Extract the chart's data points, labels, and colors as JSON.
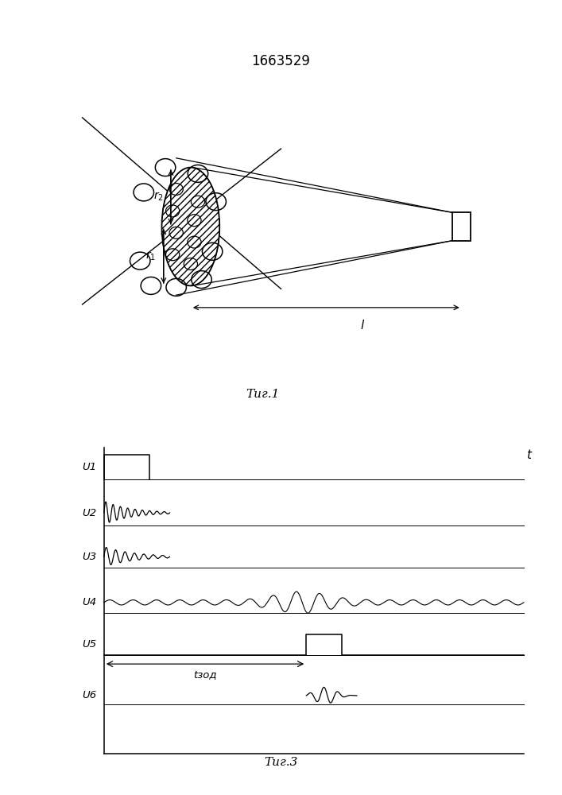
{
  "title": "1663529",
  "title_fontsize": 12,
  "fig1_label": "Τиг.1",
  "fig3_label": "Τиг.3",
  "bg_color": "#ffffff",
  "line_color": "#000000",
  "signal_labels": [
    "U1",
    "U2",
    "U3",
    "U4",
    "U5",
    "U6"
  ],
  "t_label": "t",
  "tzad_label": "tзод"
}
